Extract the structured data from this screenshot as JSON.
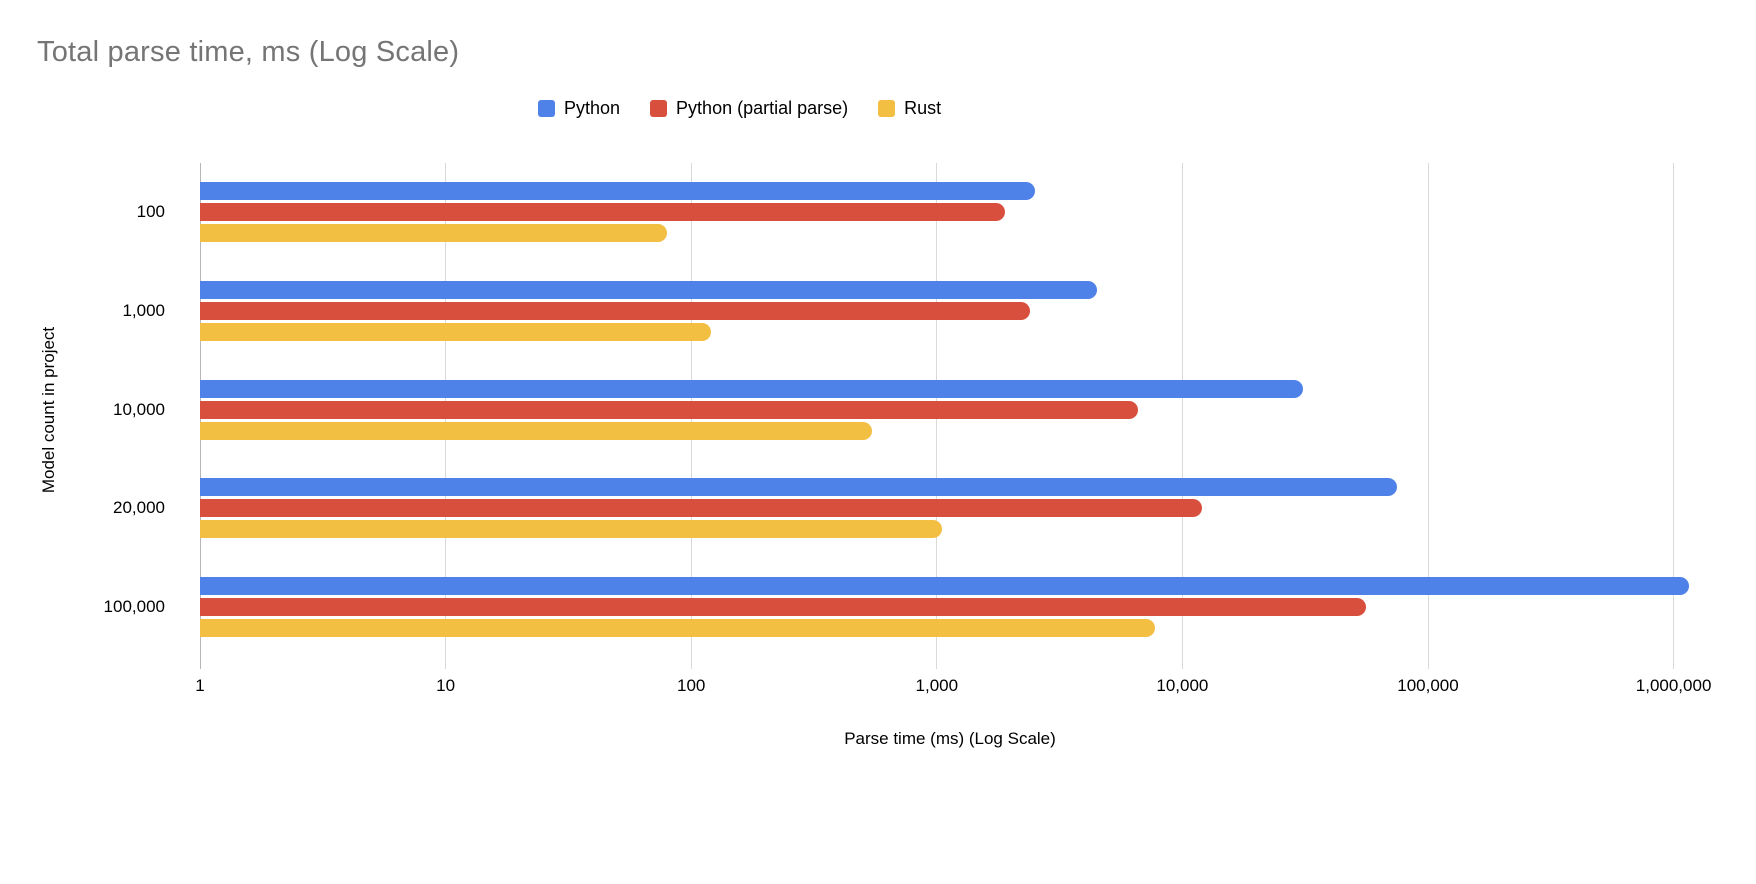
{
  "title": "Total parse time, ms (Log Scale)",
  "colors": {
    "python_blue": "#4F82E8",
    "python_partial_red": "#D94F3D",
    "rust_yellow": "#F2BF42",
    "gridline": "#D9D9D9",
    "axis_line": "#B7B7B7",
    "title_text": "#757575",
    "label_text": "#000000"
  },
  "chart_data": {
    "type": "bar",
    "orientation": "horizontal",
    "log_scale_x": true,
    "title": "Total parse time, ms (Log Scale)",
    "xlabel": "Parse time (ms) (Log Scale)",
    "ylabel": "Model count in project",
    "legend_position": "top",
    "grid": true,
    "categories": [
      "100",
      "1,000",
      "10,000",
      "20,000",
      "100,000"
    ],
    "series": [
      {
        "name": "Python",
        "color": "#4F82E8",
        "values": [
          2500,
          4500,
          31000,
          75000,
          1150000
        ]
      },
      {
        "name": "Python (partial parse)",
        "color": "#D94F3D",
        "values": [
          1900,
          2400,
          6600,
          12000,
          56000
        ]
      },
      {
        "name": "Rust",
        "color": "#F2BF42",
        "values": [
          80,
          120,
          545,
          1050,
          7700
        ]
      }
    ],
    "x_ticks": [
      "1",
      "10",
      "100",
      "1,000",
      "10,000",
      "100,000",
      "1,000,000"
    ],
    "x_tick_values": [
      1,
      10,
      100,
      1000,
      10000,
      100000,
      1000000
    ],
    "xlim": [
      1,
      1000000
    ]
  }
}
